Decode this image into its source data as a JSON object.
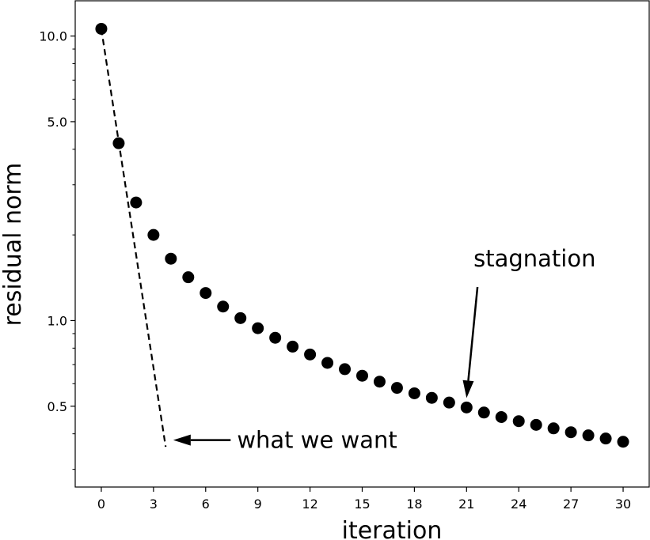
{
  "chart_data": {
    "type": "scatter",
    "title": "",
    "xlabel": "iteration",
    "ylabel": "residual norm",
    "yscale": "log",
    "xlim": [
      -1.5,
      31.5
    ],
    "ylim": [
      0.26,
      13.3
    ],
    "x_ticks": [
      0,
      3,
      6,
      9,
      12,
      15,
      18,
      21,
      24,
      27,
      30
    ],
    "x_tick_labels": [
      "0",
      "3",
      "6",
      "9",
      "12",
      "15",
      "18",
      "21",
      "24",
      "27",
      "30"
    ],
    "y_ticks": [
      10.0,
      5.0,
      1.0,
      0.5
    ],
    "y_tick_labels": [
      "10.0",
      "5.0",
      "1.0",
      "0.5"
    ],
    "grid": false,
    "legend": "none",
    "series": [
      {
        "style": "markers",
        "color": "#000000",
        "x": [
          0,
          1,
          2,
          3,
          4,
          5,
          6,
          7,
          8,
          9,
          10,
          11,
          12,
          13,
          14,
          15,
          16,
          17,
          18,
          19,
          20,
          21,
          22,
          23,
          24,
          25,
          26,
          27,
          28,
          29,
          30
        ],
        "y": [
          10.6,
          4.2,
          2.6,
          2.0,
          1.65,
          1.42,
          1.25,
          1.12,
          1.02,
          0.94,
          0.87,
          0.81,
          0.76,
          0.71,
          0.675,
          0.64,
          0.61,
          0.58,
          0.555,
          0.535,
          0.515,
          0.495,
          0.475,
          0.458,
          0.443,
          0.43,
          0.418,
          0.405,
          0.395,
          0.385,
          0.375
        ]
      },
      {
        "style": "dashed-line",
        "color": "#000000",
        "x": [
          0,
          3.7
        ],
        "y": [
          10.6,
          0.36
        ]
      }
    ],
    "annotations": [
      {
        "text": "stagnation",
        "x": 21,
        "y": 0.495,
        "text_at": [
          21.4,
          1.55
        ],
        "direction": "down"
      },
      {
        "text": "what we want",
        "x": 4,
        "y": 0.38,
        "text_at": [
          7.8,
          0.38
        ],
        "direction": "left"
      }
    ]
  }
}
